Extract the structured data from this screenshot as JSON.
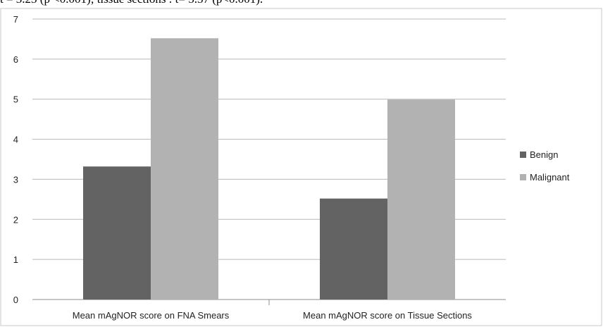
{
  "caption_fragment": "t = 3.23 (p <0.001); tissue sections : t= 5.37 (p<0.001).",
  "chart_data": {
    "type": "bar",
    "title": "",
    "xlabel": "",
    "ylabel": "",
    "ylim": [
      0,
      7
    ],
    "yticks": [
      "0",
      "1",
      "2",
      "3",
      "4",
      "5",
      "6",
      "7"
    ],
    "grid": true,
    "legend_position": "right",
    "categories": [
      "Mean mAgNOR score on FNA Smears",
      "Mean mAgNOR score on Tissue Sections"
    ],
    "series": [
      {
        "name": "Benign",
        "values": [
          3.32,
          2.52
        ],
        "color": "#636363"
      },
      {
        "name": "Malignant",
        "values": [
          6.52,
          4.99
        ],
        "color": "#b2b2b2"
      }
    ]
  }
}
